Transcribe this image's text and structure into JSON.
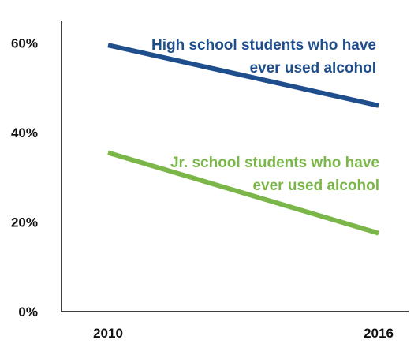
{
  "chart_data": {
    "type": "line",
    "x": [
      "2010",
      "2016"
    ],
    "ylim": [
      0,
      65
    ],
    "yticks": [
      0,
      20,
      40,
      60
    ],
    "ytick_labels": [
      "0%",
      "20%",
      "40%",
      "60%"
    ],
    "xtick_labels": [
      "2010",
      "2016"
    ],
    "grid": false,
    "legend": "none",
    "series": [
      {
        "name": "High school students who have ever used alcohol",
        "label_lines": [
          "High school students who have",
          "ever used alcohol"
        ],
        "values": [
          59.5,
          46
        ],
        "color": "#1f4e8c"
      },
      {
        "name": "Jr. school students who have ever used alcohol",
        "label_lines": [
          "Jr. school students who have",
          "ever used alcohol"
        ],
        "values": [
          35.5,
          17.5
        ],
        "color": "#7ab648"
      }
    ]
  }
}
